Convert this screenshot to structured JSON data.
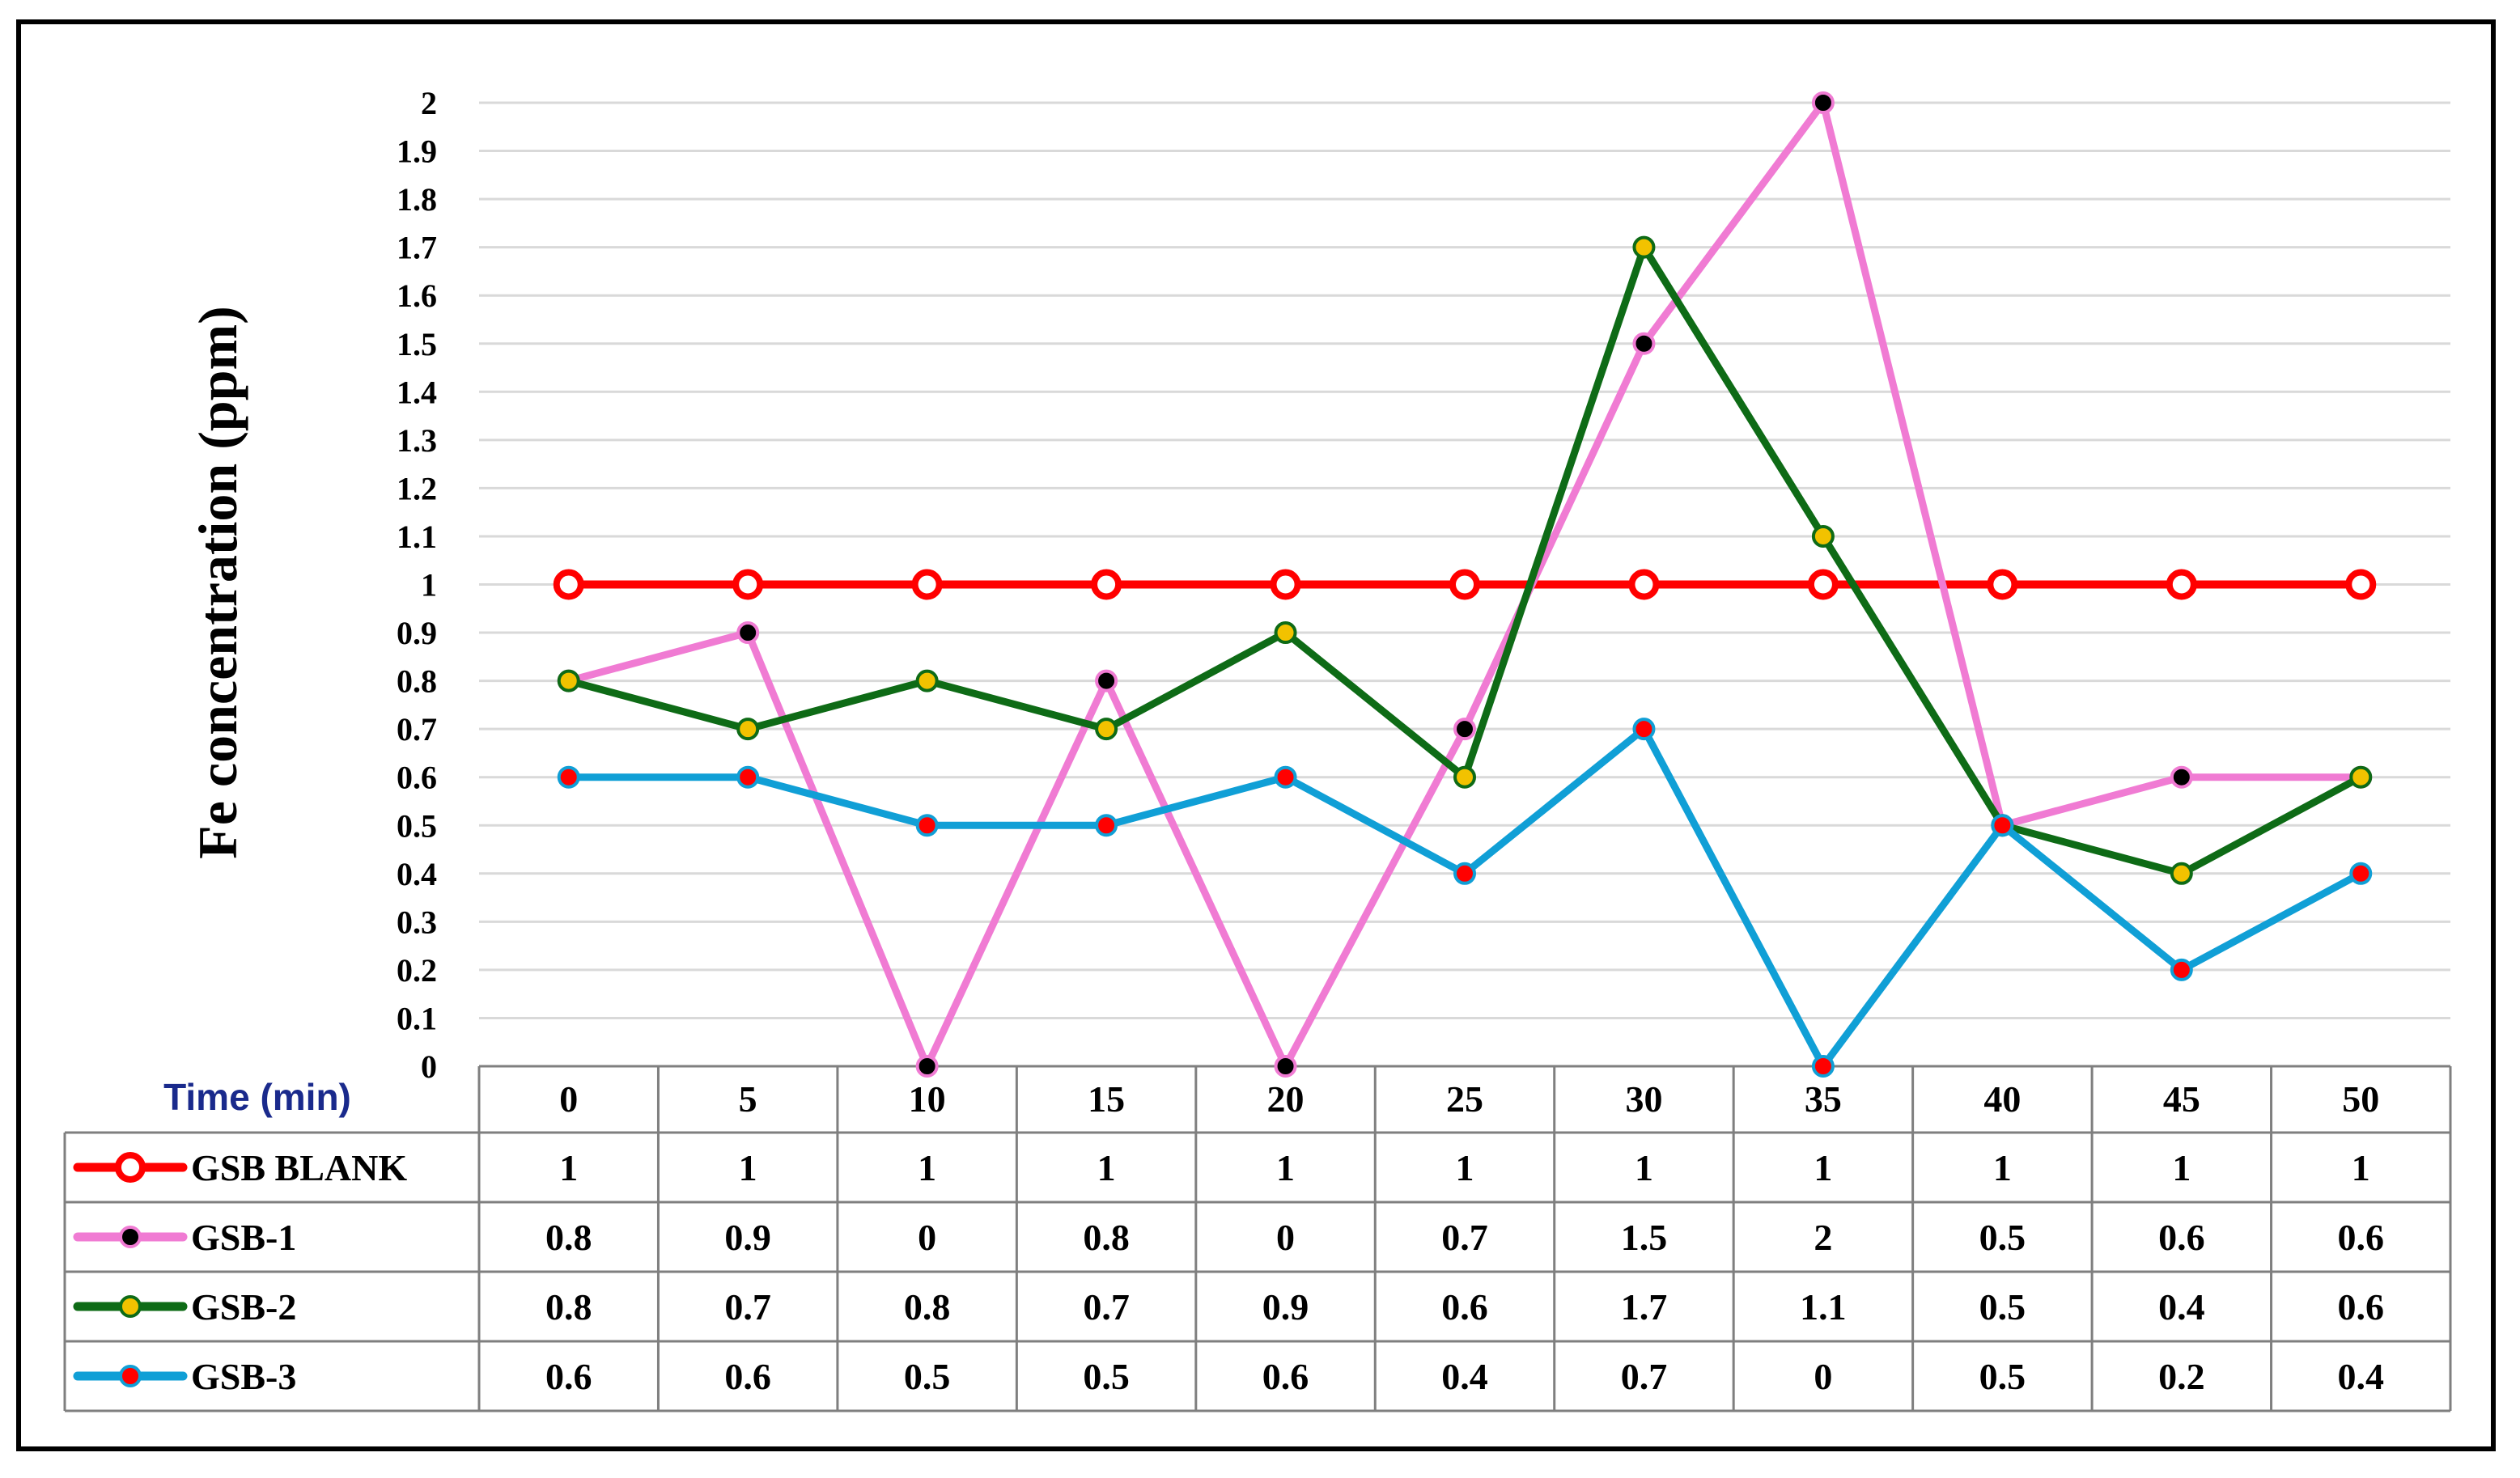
{
  "chart_data": {
    "type": "line",
    "ylabel": "Fe concentration (ppm)",
    "xlabel": "Time (min)",
    "x": [
      "0",
      "5",
      "10",
      "15",
      "20",
      "25",
      "30",
      "35",
      "40",
      "45",
      "50"
    ],
    "ylim": [
      0,
      2
    ],
    "yticks": [
      "0",
      "0.1",
      "0.2",
      "0.3",
      "0.4",
      "0.5",
      "0.6",
      "0.7",
      "0.8",
      "0.9",
      "1",
      "1.1",
      "1.2",
      "1.3",
      "1.4",
      "1.5",
      "1.6",
      "1.7",
      "1.8",
      "1.9",
      "2"
    ],
    "grid": true,
    "legend": "data table below plot",
    "series": [
      {
        "name": "GSB BLANK",
        "values": [
          1,
          1,
          1,
          1,
          1,
          1,
          1,
          1,
          1,
          1,
          1
        ],
        "line_color": "#ff0000",
        "marker_fill": "#ffffff",
        "marker_stroke": "#ff0000"
      },
      {
        "name": "GSB-1",
        "values": [
          0.8,
          0.9,
          0,
          0.8,
          0,
          0.7,
          1.5,
          2,
          0.5,
          0.6,
          0.6
        ],
        "line_color": "#f07bd3",
        "marker_fill": "#000000",
        "marker_stroke": "#f07bd3"
      },
      {
        "name": "GSB-2",
        "values": [
          0.8,
          0.7,
          0.8,
          0.7,
          0.9,
          0.6,
          1.7,
          1.1,
          0.5,
          0.4,
          0.6
        ],
        "line_color": "#0e6b16",
        "marker_fill": "#f2c200",
        "marker_stroke": "#0e6b16"
      },
      {
        "name": "GSB-3",
        "values": [
          0.6,
          0.6,
          0.5,
          0.5,
          0.6,
          0.4,
          0.7,
          0,
          0.5,
          0.2,
          0.4
        ],
        "line_color": "#109fd6",
        "marker_fill": "#ff0000",
        "marker_stroke": "#109fd6"
      }
    ],
    "xlabel_color": "#1a2a8c"
  }
}
